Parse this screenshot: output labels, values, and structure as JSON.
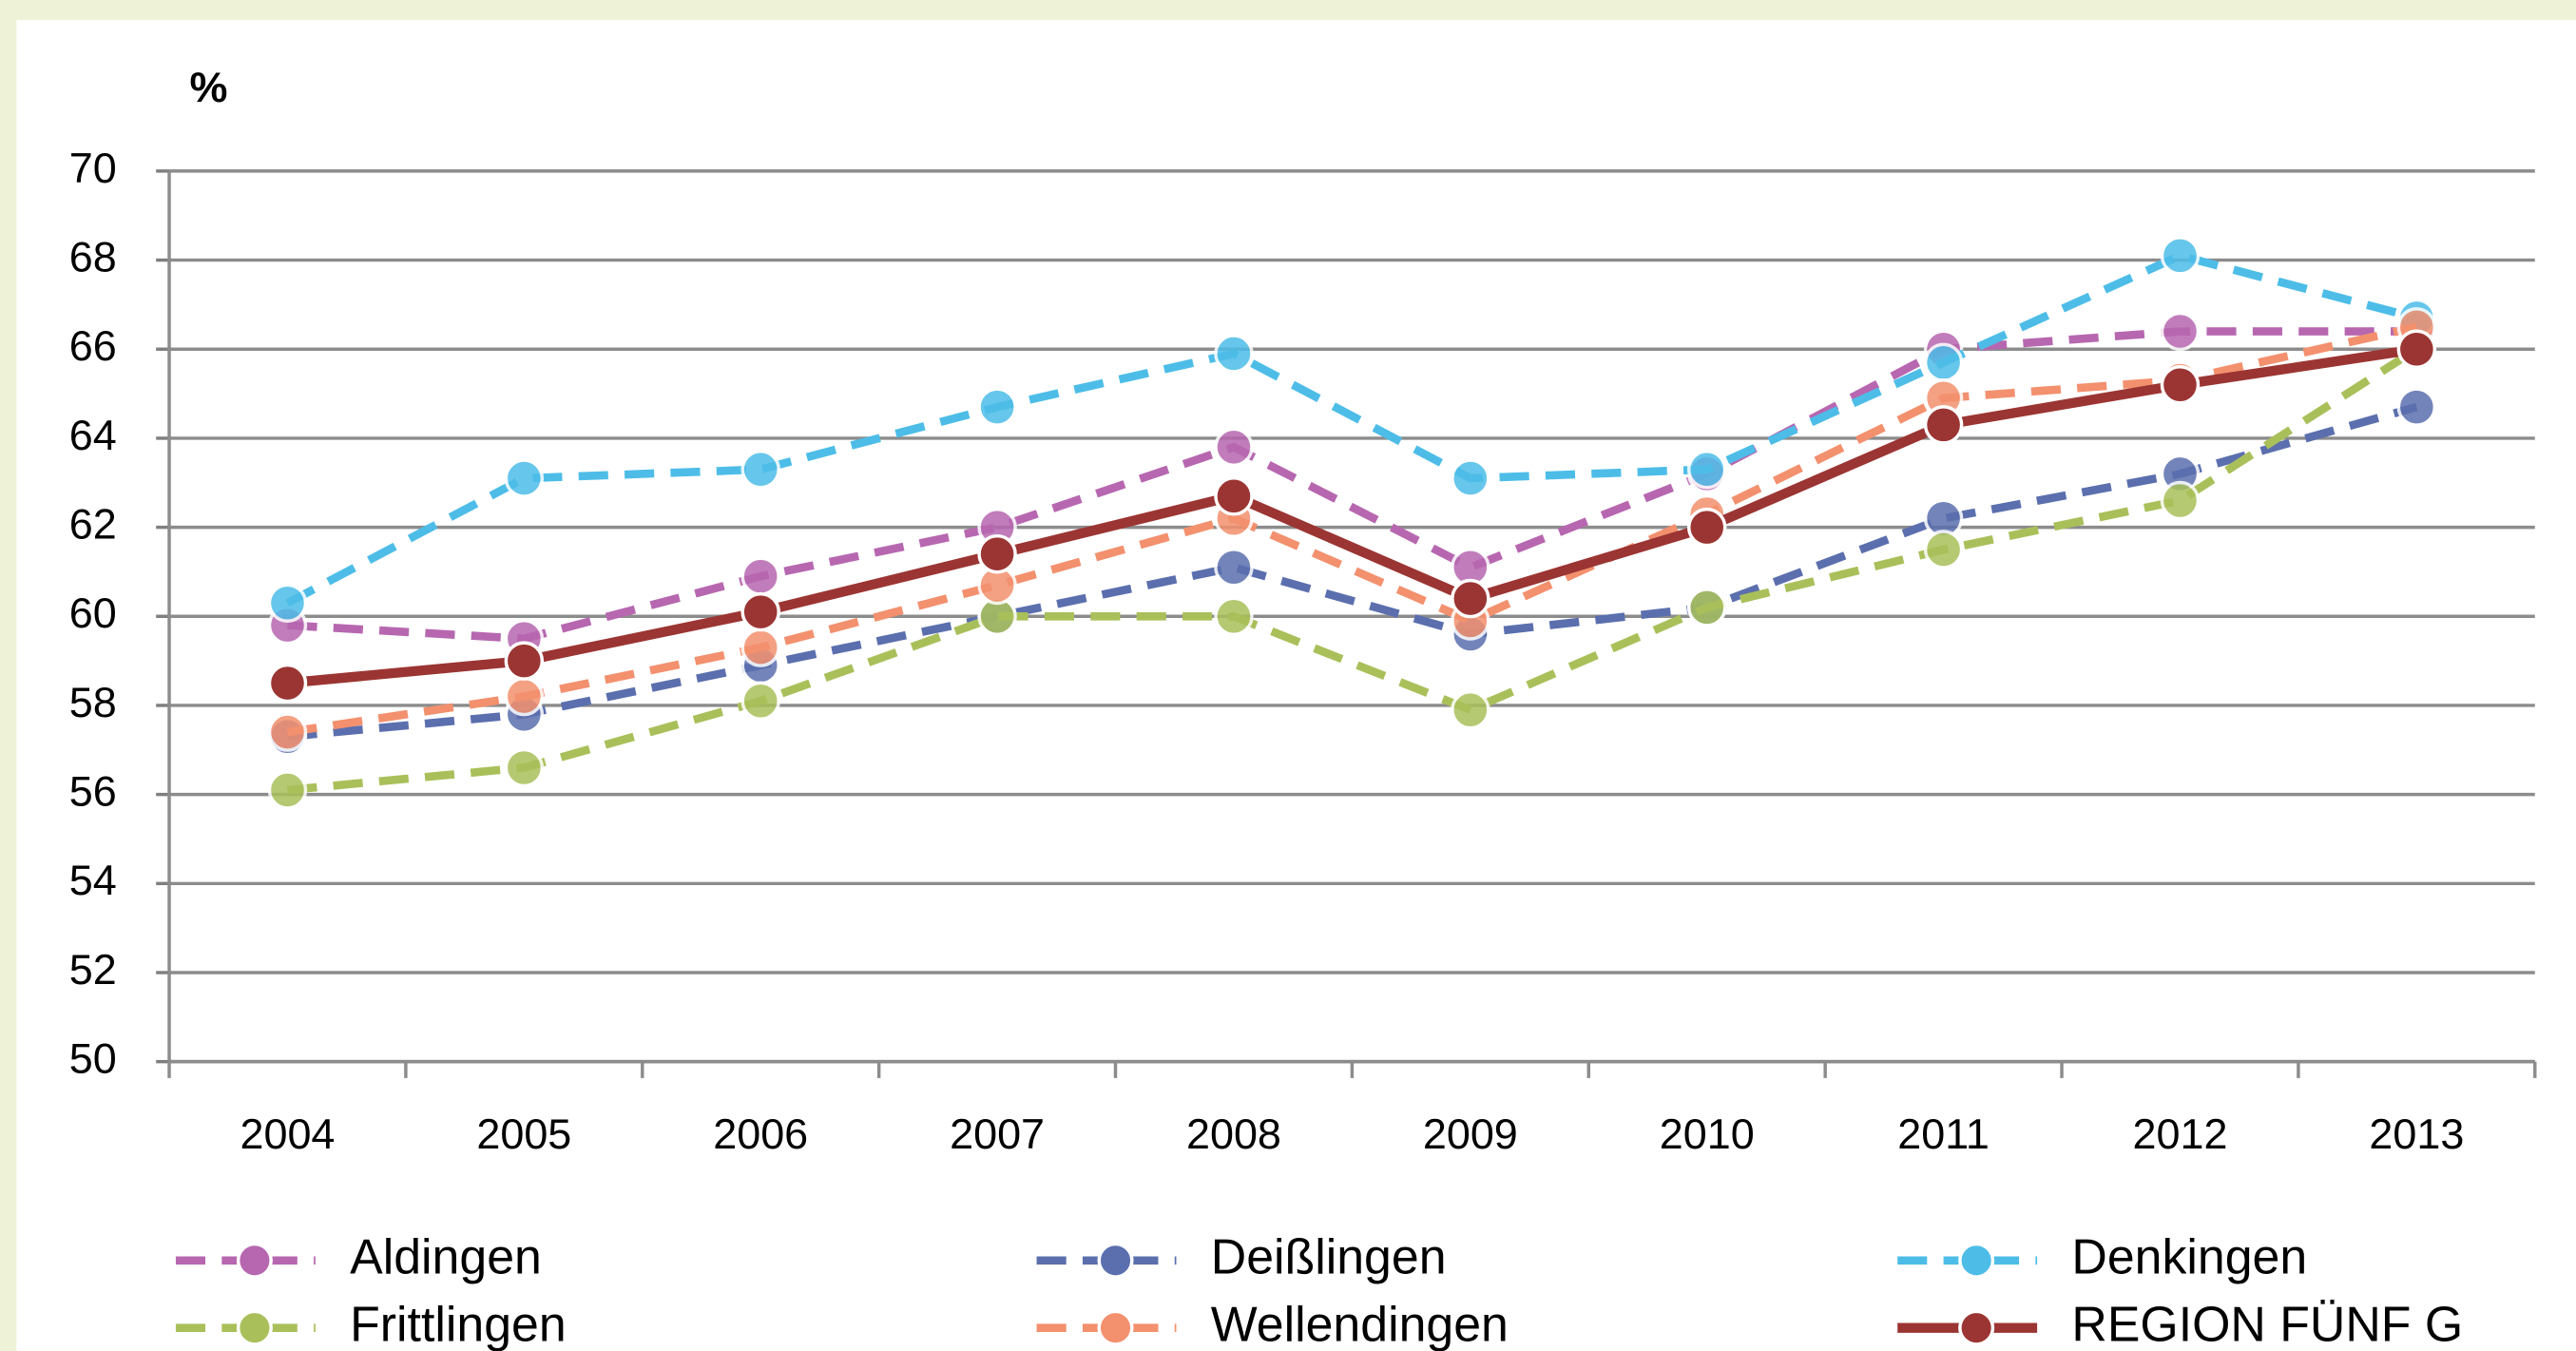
{
  "chart_data": {
    "type": "line",
    "y_label": "%",
    "categories": [
      "2004",
      "2005",
      "2006",
      "2007",
      "2008",
      "2009",
      "2010",
      "2011",
      "2012",
      "2013"
    ],
    "ylim": [
      50,
      70
    ],
    "yticks": [
      50,
      52,
      54,
      56,
      58,
      60,
      62,
      64,
      66,
      68,
      70
    ],
    "grid": true,
    "series": [
      {
        "name": "Aldingen",
        "color": "#b767b0",
        "dashed": true,
        "values": [
          59.8,
          59.5,
          60.9,
          62.0,
          63.8,
          61.1,
          63.2,
          66.0,
          66.4,
          66.4
        ]
      },
      {
        "name": "Deißlingen",
        "color": "#5b6fae",
        "dashed": true,
        "values": [
          57.3,
          57.8,
          58.9,
          60.0,
          61.1,
          59.6,
          60.2,
          62.2,
          63.2,
          64.7
        ]
      },
      {
        "name": "Denkingen",
        "color": "#4dbde8",
        "dashed": true,
        "values": [
          60.3,
          63.1,
          63.3,
          64.7,
          65.9,
          63.1,
          63.3,
          65.7,
          68.1,
          66.7
        ]
      },
      {
        "name": "Frittlingen",
        "color": "#a9c05a",
        "dashed": true,
        "values": [
          56.1,
          56.6,
          58.1,
          60.0,
          60.0,
          57.9,
          60.2,
          61.5,
          62.6,
          66.0
        ]
      },
      {
        "name": "Wellendingen",
        "color": "#f3906e",
        "dashed": true,
        "values": [
          57.4,
          58.2,
          59.3,
          60.7,
          62.2,
          59.9,
          62.3,
          64.9,
          65.3,
          66.5
        ]
      },
      {
        "name": "REGION FÜNF G",
        "color": "#9b3533",
        "dashed": false,
        "values": [
          58.5,
          59.0,
          60.1,
          61.4,
          62.7,
          60.4,
          62.0,
          64.3,
          65.2,
          66.0
        ]
      }
    ]
  }
}
